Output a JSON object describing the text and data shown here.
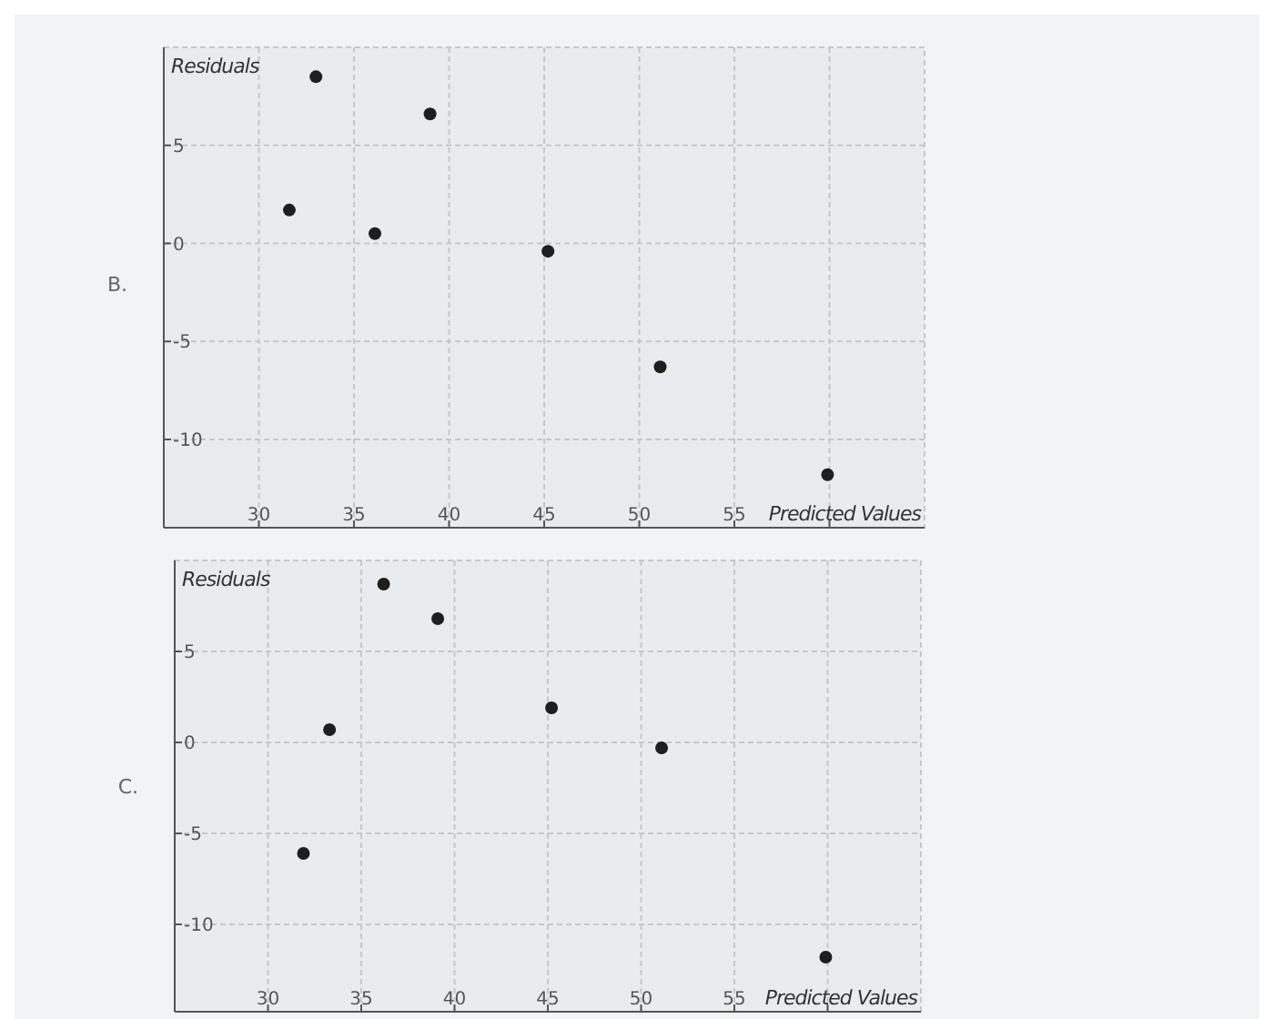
{
  "chart_data": [
    {
      "type": "scatter",
      "xlabel": "Predicted Values",
      "ylabel": "Residuals",
      "annotations": [
        "B."
      ],
      "marker": "circle",
      "grid": true,
      "x": [
        31.6,
        33.0,
        36.1,
        39.0,
        45.2,
        51.1,
        59.9
      ],
      "series": [
        {
          "color": "#1e1e1e",
          "values": [
            1.7,
            8.5,
            0.5,
            6.6,
            -0.4,
            -6.3,
            -11.8
          ]
        }
      ],
      "xlim": [
        25,
        65
      ],
      "xticks": [
        30,
        35,
        40,
        45,
        50,
        55,
        {
          "value": 60,
          "label": null
        }
      ],
      "ylim": [
        -14.5,
        10
      ],
      "yticks": [
        -10,
        -5,
        0,
        5
      ]
    },
    {
      "type": "scatter",
      "xlabel": "Predicted Values",
      "ylabel": "Residuals",
      "annotations": [
        "C."
      ],
      "marker": "circle",
      "grid": true,
      "x": [
        31.9,
        33.3,
        36.2,
        39.1,
        45.2,
        51.1,
        59.9
      ],
      "series": [
        {
          "color": "#1e1e1e",
          "values": [
            -6.1,
            0.7,
            8.7,
            6.8,
            1.9,
            -0.3,
            -11.8
          ]
        }
      ],
      "xlim": [
        25,
        65
      ],
      "xticks": [
        30,
        35,
        40,
        45,
        50,
        55,
        {
          "value": 60,
          "label": null
        }
      ],
      "ylim": [
        -14.8,
        10
      ],
      "yticks": [
        -10,
        -5,
        0,
        5
      ]
    }
  ]
}
